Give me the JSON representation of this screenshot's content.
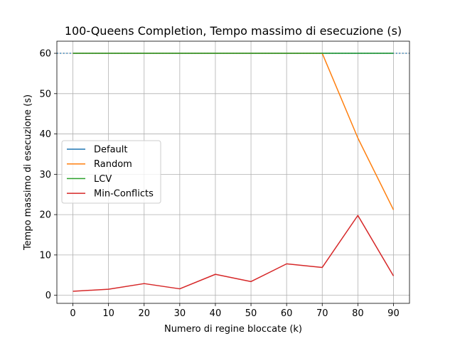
{
  "chart_data": {
    "type": "line",
    "title": "100-Queens Completion, Tempo massimo di esecuzione (s)",
    "xlabel": "Numero di regine bloccate (k)",
    "ylabel": "Tempo massimo di esecuzione (s)",
    "x": [
      0,
      10,
      20,
      30,
      40,
      50,
      60,
      70,
      80,
      90
    ],
    "xticks": [
      "0",
      "10",
      "20",
      "30",
      "40",
      "50",
      "60",
      "70",
      "80",
      "90"
    ],
    "yticks": [
      "0",
      "10",
      "20",
      "30",
      "40",
      "50",
      "60"
    ],
    "ytick_values": [
      0,
      10,
      20,
      30,
      40,
      50,
      60
    ],
    "xlim": [
      -4.5,
      94.5
    ],
    "ylim": [
      -2,
      63
    ],
    "grid": true,
    "legend_position": "center-left",
    "reference_line": {
      "y": 60,
      "style": "dotted",
      "color": "#1f77b4"
    },
    "series": [
      {
        "name": "Default",
        "color": "#1f77b4",
        "values": [
          60,
          60,
          60,
          60,
          60,
          60,
          60,
          60,
          60,
          60
        ]
      },
      {
        "name": "Random",
        "color": "#ff7f0e",
        "values": [
          60,
          60,
          60,
          60,
          60,
          60,
          60,
          60,
          39,
          21.2
        ]
      },
      {
        "name": "LCV",
        "color": "#2ca02c",
        "values": [
          60,
          60,
          60,
          60,
          60,
          60,
          60,
          60,
          60,
          60
        ]
      },
      {
        "name": "Min-Conflicts",
        "color": "#d62728",
        "values": [
          1,
          1.5,
          2.9,
          1.6,
          5.2,
          3.4,
          7.8,
          6.9,
          19.8,
          4.8
        ]
      }
    ]
  }
}
